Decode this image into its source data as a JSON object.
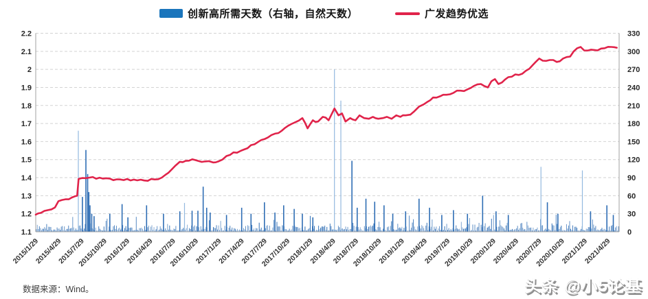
{
  "legend": {
    "bar_label": "创新高所需天数（右轴，自然天数）",
    "line_label": "广发趋势优选"
  },
  "footer": {
    "source": "数据来源：Wind。",
    "watermark": "头条 @小5论基"
  },
  "chart_data": {
    "type": "combo",
    "title": "",
    "legend_position": "top-center",
    "grid": "horizontal-dashed",
    "grid_color": "#d2d2d2",
    "axis_color": "#a0a0a0",
    "label_color": "#262626",
    "left_axis": {
      "min": 1.1,
      "max": 2.2,
      "step": 0.1,
      "labels_top_to_bottom": [
        "2.2",
        "2.1",
        "2",
        "1.9",
        "1.8",
        "1.7",
        "1.6",
        "1.5",
        "1.4",
        "1.3",
        "1.2",
        "1.1"
      ]
    },
    "right_axis": {
      "min": 0,
      "max": 330,
      "step": 30,
      "labels_top_to_bottom": [
        "330",
        "300",
        "270",
        "240",
        "210",
        "180",
        "150",
        "120",
        "90",
        "60",
        "30",
        "0"
      ]
    },
    "x_axis": {
      "start_label": "2015/1/29",
      "months_per_tick": 3,
      "total_months_span": 76.5,
      "tick_labels": [
        "2015/1/29",
        "2015/4/29",
        "2015/7/29",
        "2015/10/29",
        "2016/1/29",
        "2016/4/29",
        "2016/7/29",
        "2016/10/29",
        "2017/1/29",
        "2017/4/29",
        "2017/7/29",
        "2017/10/29",
        "2018/1/29",
        "2018/4/29",
        "2018/7/29",
        "2018/10/29",
        "2019/1/29",
        "2019/4/29",
        "2019/7/29",
        "2019/10/29",
        "2020/1/29",
        "2020/4/29",
        "2020/7/29",
        "2020/10/29",
        "2021/1/29",
        "2021/4/29"
      ]
    },
    "series": [
      {
        "name": "创新高所需天数（右轴，自然天数）",
        "type": "bar",
        "axis": "right",
        "color": "#2e6db4",
        "light_color": "#93b9df",
        "spikes_t_value_light": [
          [
            0.073,
            168,
            1
          ],
          [
            0.08,
            58,
            0
          ],
          [
            0.086,
            136,
            0
          ],
          [
            0.089,
            96,
            0
          ],
          [
            0.091,
            66,
            0
          ],
          [
            0.093,
            44,
            0
          ],
          [
            0.096,
            30,
            0
          ],
          [
            0.1,
            26,
            0
          ],
          [
            0.127,
            30,
            0
          ],
          [
            0.148,
            46,
            0
          ],
          [
            0.158,
            24,
            0
          ],
          [
            0.19,
            44,
            0
          ],
          [
            0.219,
            30,
            0
          ],
          [
            0.247,
            34,
            0
          ],
          [
            0.255,
            48,
            1
          ],
          [
            0.268,
            35,
            0
          ],
          [
            0.278,
            35,
            0
          ],
          [
            0.287,
            75,
            0
          ],
          [
            0.293,
            40,
            0
          ],
          [
            0.299,
            32,
            0
          ],
          [
            0.327,
            28,
            0
          ],
          [
            0.353,
            40,
            0
          ],
          [
            0.369,
            30,
            0
          ],
          [
            0.392,
            49,
            0
          ],
          [
            0.41,
            32,
            0
          ],
          [
            0.425,
            44,
            0
          ],
          [
            0.443,
            38,
            0
          ],
          [
            0.457,
            30,
            0
          ],
          [
            0.475,
            24,
            0
          ],
          [
            0.512,
            270,
            1
          ],
          [
            0.523,
            218,
            1
          ],
          [
            0.542,
            118,
            0
          ],
          [
            0.551,
            40,
            0
          ],
          [
            0.566,
            55,
            0
          ],
          [
            0.581,
            50,
            0
          ],
          [
            0.597,
            44,
            0
          ],
          [
            0.612,
            30,
            0
          ],
          [
            0.634,
            34,
            0
          ],
          [
            0.657,
            55,
            0
          ],
          [
            0.675,
            40,
            0
          ],
          [
            0.696,
            28,
            0
          ],
          [
            0.716,
            36,
            0
          ],
          [
            0.74,
            30,
            0
          ],
          [
            0.766,
            60,
            0
          ],
          [
            0.789,
            34,
            0
          ],
          [
            0.81,
            28,
            0
          ],
          [
            0.866,
            108,
            1
          ],
          [
            0.877,
            49,
            0
          ],
          [
            0.895,
            30,
            0
          ],
          [
            0.937,
            102,
            1
          ],
          [
            0.951,
            34,
            0
          ],
          [
            0.979,
            44,
            0
          ],
          [
            0.99,
            28,
            0
          ]
        ],
        "baseline_noise": {
          "seed": 11,
          "count": 560,
          "max": 32
        }
      },
      {
        "name": "广发趋势优选",
        "type": "line",
        "axis": "left",
        "color": "#e0234a",
        "width": 2.6,
        "jitter": 0.012,
        "points_t_value": [
          [
            0.0,
            1.195
          ],
          [
            0.009,
            1.205
          ],
          [
            0.021,
            1.22
          ],
          [
            0.033,
            1.235
          ],
          [
            0.039,
            1.27
          ],
          [
            0.051,
            1.28
          ],
          [
            0.062,
            1.29
          ],
          [
            0.071,
            1.3
          ],
          [
            0.0735,
            1.393
          ],
          [
            0.092,
            1.4
          ],
          [
            0.115,
            1.395
          ],
          [
            0.145,
            1.39
          ],
          [
            0.174,
            1.385
          ],
          [
            0.204,
            1.39
          ],
          [
            0.216,
            1.4
          ],
          [
            0.222,
            1.415
          ],
          [
            0.233,
            1.445
          ],
          [
            0.239,
            1.465
          ],
          [
            0.247,
            1.488
          ],
          [
            0.257,
            1.493
          ],
          [
            0.274,
            1.497
          ],
          [
            0.29,
            1.49
          ],
          [
            0.304,
            1.484
          ],
          [
            0.313,
            1.49
          ],
          [
            0.32,
            1.5
          ],
          [
            0.327,
            1.52
          ],
          [
            0.351,
            1.548
          ],
          [
            0.375,
            1.585
          ],
          [
            0.398,
            1.623
          ],
          [
            0.422,
            1.661
          ],
          [
            0.433,
            1.688
          ],
          [
            0.445,
            1.707
          ],
          [
            0.457,
            1.73
          ],
          [
            0.466,
            1.673
          ],
          [
            0.475,
            1.718
          ],
          [
            0.484,
            1.711
          ],
          [
            0.492,
            1.737
          ],
          [
            0.502,
            1.718
          ],
          [
            0.512,
            1.783
          ],
          [
            0.519,
            1.745
          ],
          [
            0.525,
            1.756
          ],
          [
            0.531,
            1.711
          ],
          [
            0.539,
            1.73
          ],
          [
            0.548,
            1.718
          ],
          [
            0.555,
            1.745
          ],
          [
            0.563,
            1.73
          ],
          [
            0.571,
            1.726
          ],
          [
            0.578,
            1.737
          ],
          [
            0.587,
            1.726
          ],
          [
            0.595,
            1.73
          ],
          [
            0.602,
            1.737
          ],
          [
            0.61,
            1.726
          ],
          [
            0.618,
            1.745
          ],
          [
            0.625,
            1.737
          ],
          [
            0.634,
            1.745
          ],
          [
            0.642,
            1.749
          ],
          [
            0.649,
            1.768
          ],
          [
            0.657,
            1.794
          ],
          [
            0.665,
            1.806
          ],
          [
            0.672,
            1.821
          ],
          [
            0.681,
            1.844
          ],
          [
            0.693,
            1.851
          ],
          [
            0.704,
            1.859
          ],
          [
            0.716,
            1.87
          ],
          [
            0.728,
            1.882
          ],
          [
            0.74,
            1.889
          ],
          [
            0.751,
            1.908
          ],
          [
            0.763,
            1.919
          ],
          [
            0.775,
            1.9
          ],
          [
            0.781,
            1.934
          ],
          [
            0.787,
            1.946
          ],
          [
            0.793,
            1.919
          ],
          [
            0.799,
            1.927
          ],
          [
            0.81,
            1.957
          ],
          [
            0.822,
            1.972
          ],
          [
            0.834,
            1.976
          ],
          [
            0.846,
            2.003
          ],
          [
            0.857,
            2.041
          ],
          [
            0.863,
            2.06
          ],
          [
            0.869,
            2.048
          ],
          [
            0.881,
            2.052
          ],
          [
            0.893,
            2.041
          ],
          [
            0.904,
            2.06
          ],
          [
            0.916,
            2.071
          ],
          [
            0.928,
            2.117
          ],
          [
            0.934,
            2.124
          ],
          [
            0.94,
            2.105
          ],
          [
            0.952,
            2.109
          ],
          [
            0.963,
            2.105
          ],
          [
            0.975,
            2.117
          ],
          [
            0.987,
            2.124
          ],
          [
            0.996,
            2.12
          ]
        ]
      }
    ]
  }
}
